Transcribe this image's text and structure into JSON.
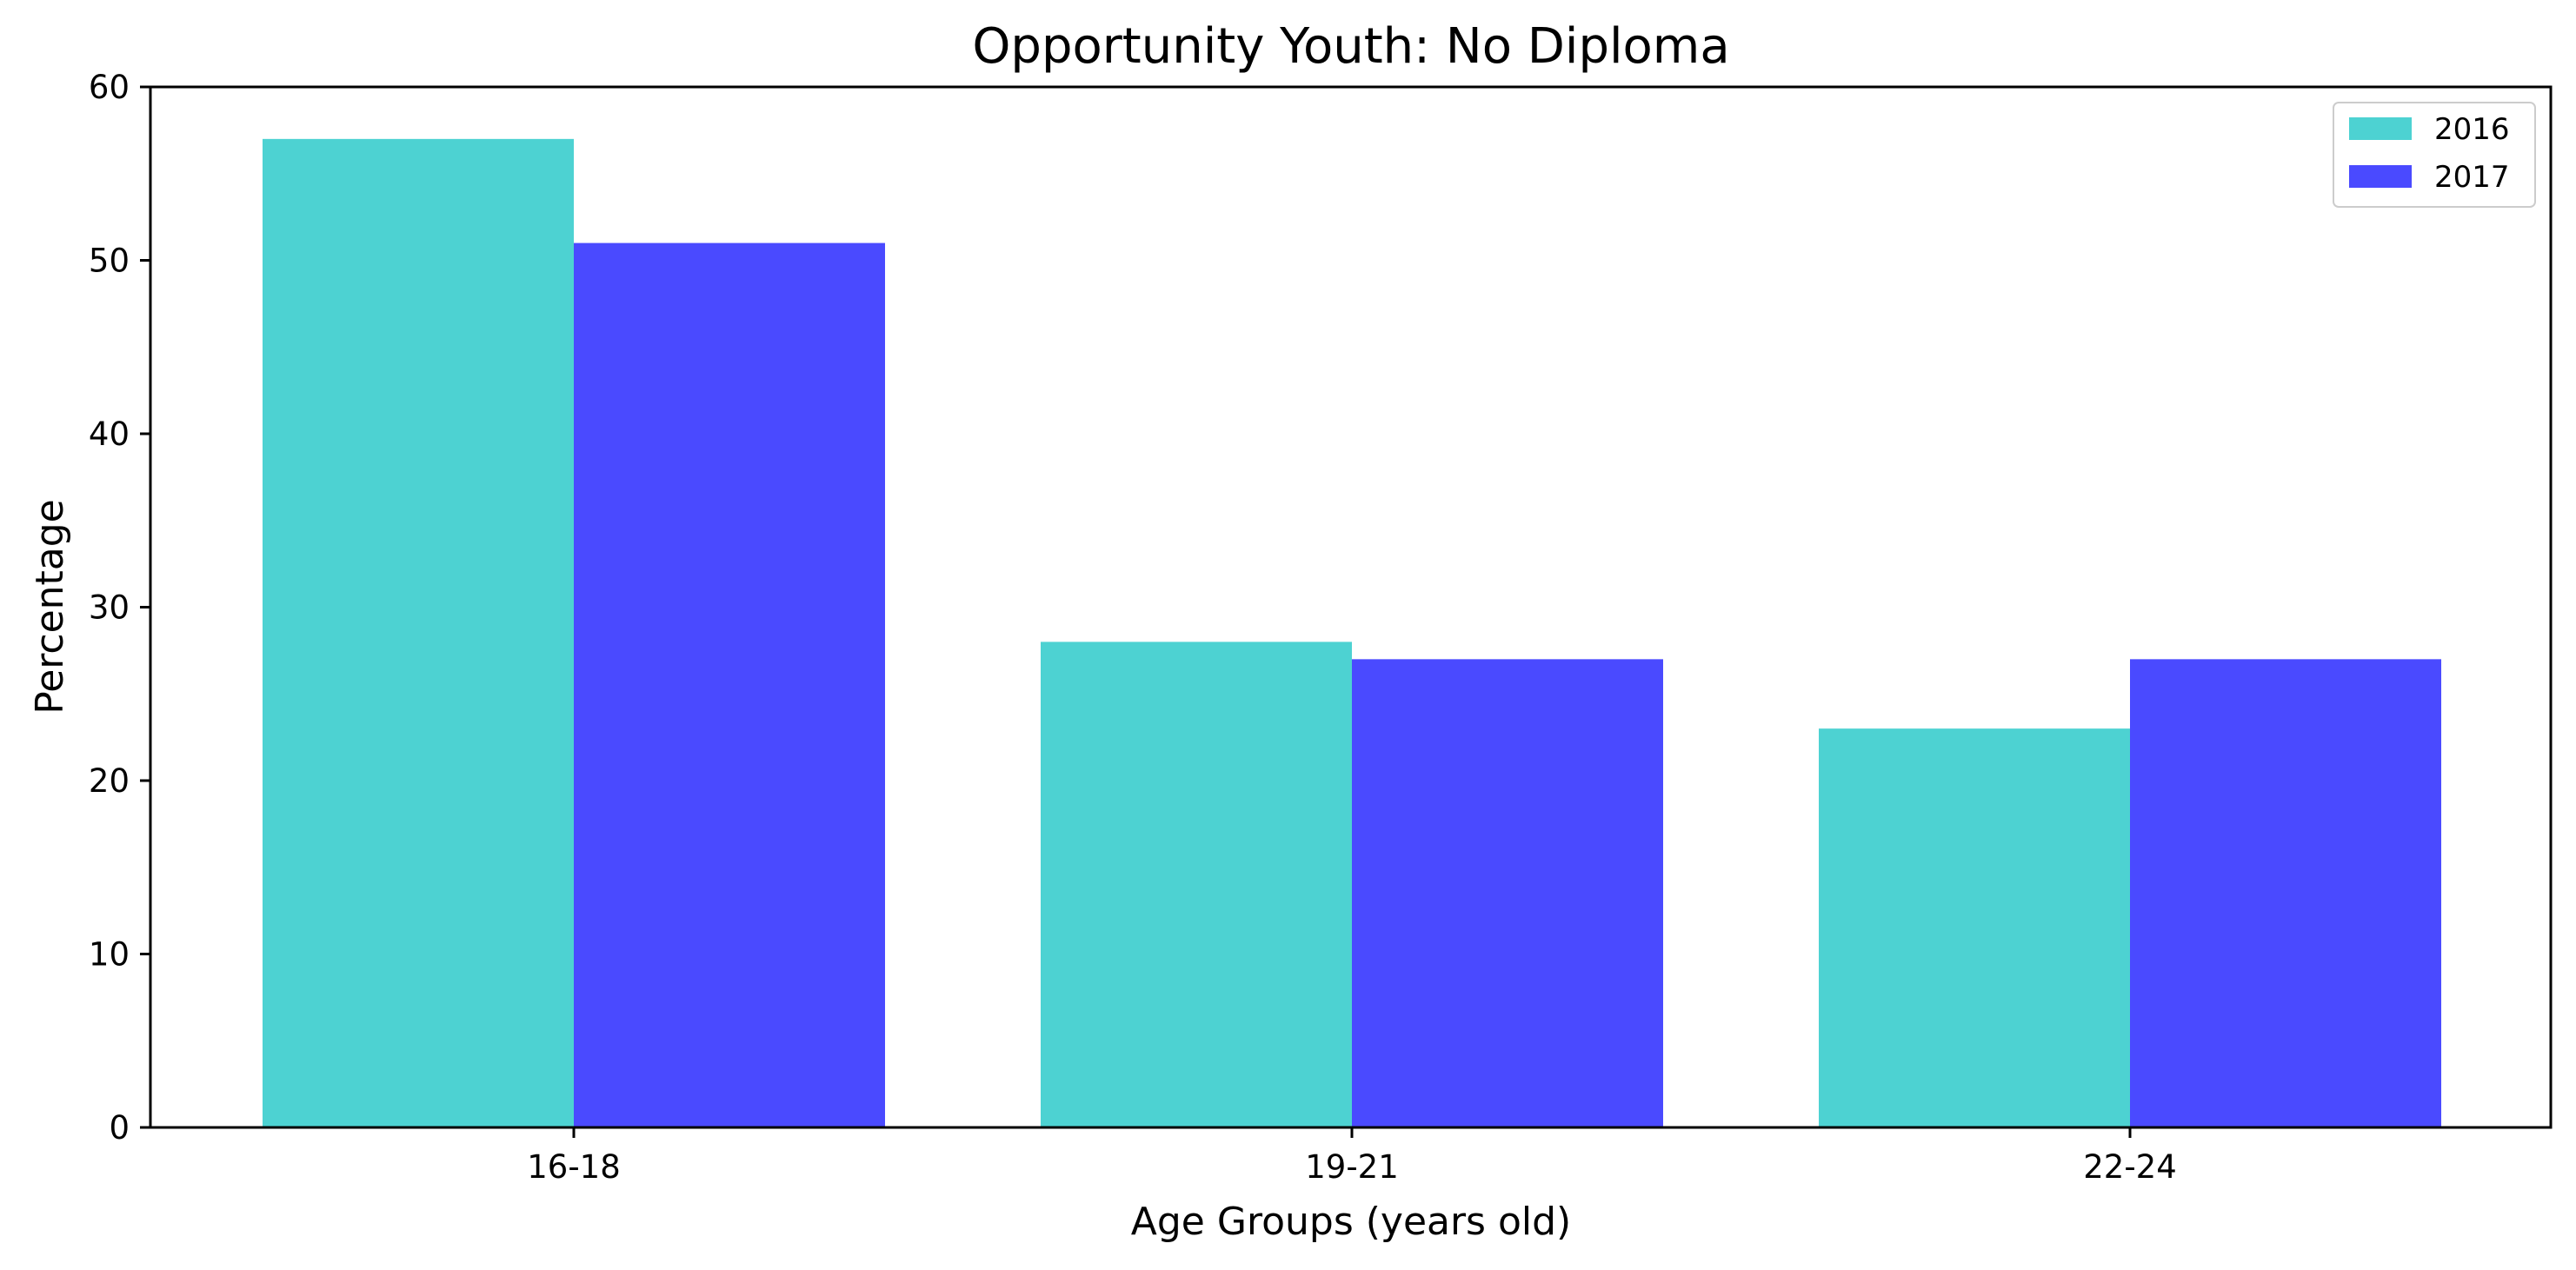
{
  "chart_data": {
    "type": "bar",
    "title": "Opportunity Youth: No Diploma",
    "xlabel": "Age Groups (years old)",
    "ylabel": "Percentage",
    "categories": [
      "16-18",
      "19-21",
      "22-24"
    ],
    "series": [
      {
        "name": "2016",
        "values": [
          57,
          28,
          23
        ],
        "color": "#4dd2d2"
      },
      {
        "name": "2017",
        "values": [
          51,
          27,
          27
        ],
        "color": "#4a4aff"
      }
    ],
    "ylim": [
      0,
      60
    ],
    "yticks": [
      "0",
      "10",
      "20",
      "30",
      "40",
      "50",
      "60"
    ],
    "grid": false,
    "legend": {
      "position": "top-right",
      "labels": [
        "2016",
        "2017"
      ]
    }
  }
}
